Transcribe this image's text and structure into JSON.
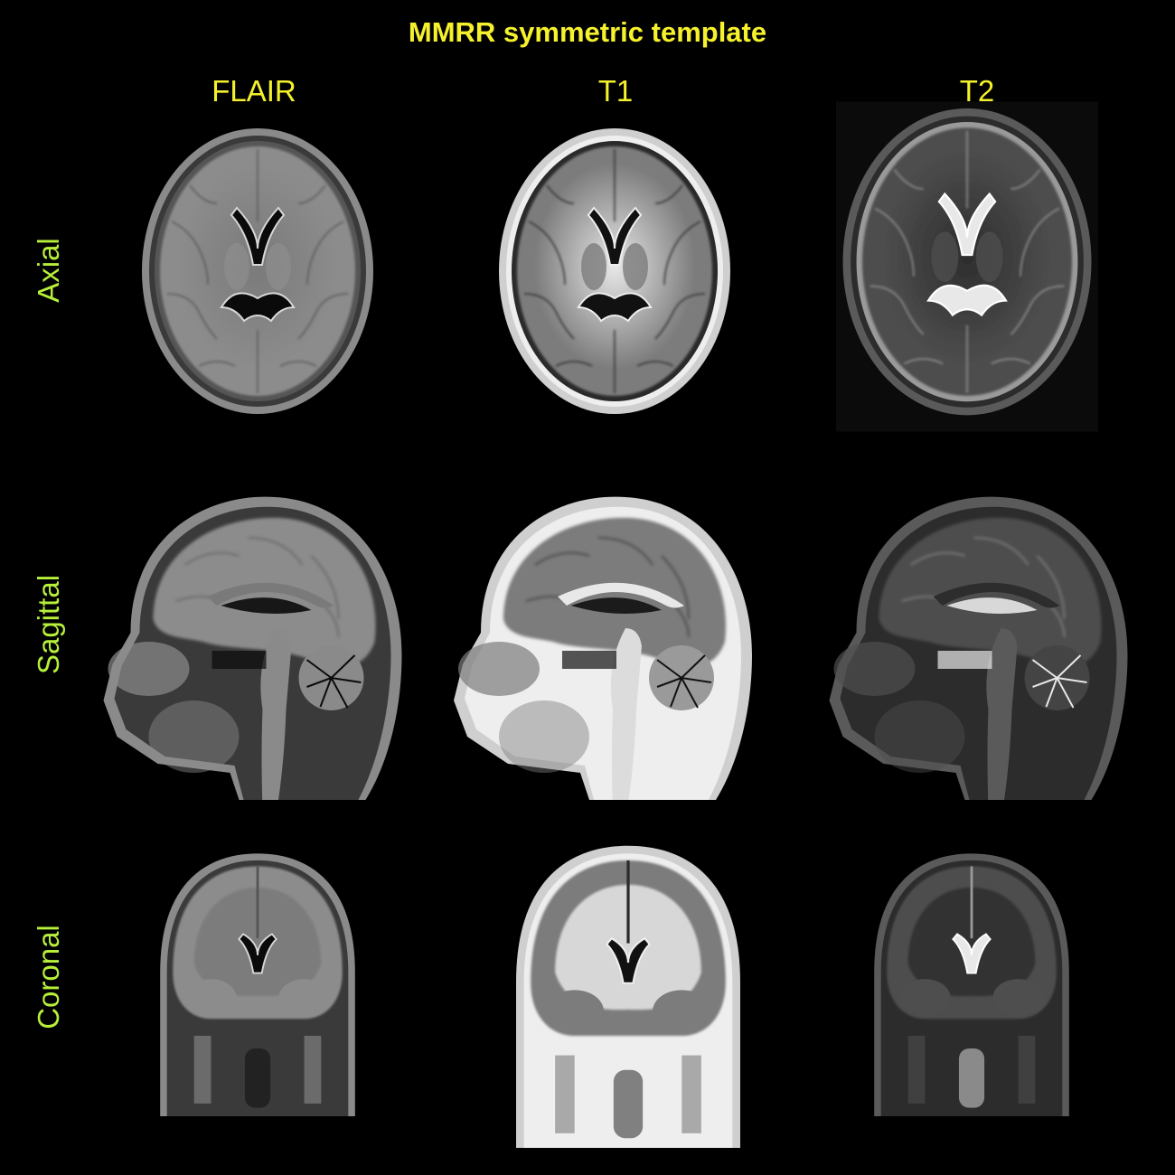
{
  "title": "MMRR symmetric template",
  "columns": [
    "FLAIR",
    "T1",
    "T2"
  ],
  "rows": [
    "Axial",
    "Sagittal",
    "Coronal"
  ],
  "colors": {
    "title": "#f5f12c",
    "column_header": "#f5f12c",
    "row_header": "#b6f03a",
    "background": "#000000"
  },
  "panels": [
    {
      "row": "Axial",
      "column": "FLAIR",
      "view": "axial",
      "contrast": "flair"
    },
    {
      "row": "Axial",
      "column": "T1",
      "view": "axial",
      "contrast": "t1"
    },
    {
      "row": "Axial",
      "column": "T2",
      "view": "axial",
      "contrast": "t2"
    },
    {
      "row": "Sagittal",
      "column": "FLAIR",
      "view": "sagittal",
      "contrast": "flair"
    },
    {
      "row": "Sagittal",
      "column": "T1",
      "view": "sagittal",
      "contrast": "t1"
    },
    {
      "row": "Sagittal",
      "column": "T2",
      "view": "sagittal",
      "contrast": "t2"
    },
    {
      "row": "Coronal",
      "column": "FLAIR",
      "view": "coronal",
      "contrast": "flair"
    },
    {
      "row": "Coronal",
      "column": "T1",
      "view": "coronal",
      "contrast": "t1"
    },
    {
      "row": "Coronal",
      "column": "T2",
      "view": "coronal",
      "contrast": "t2"
    }
  ]
}
